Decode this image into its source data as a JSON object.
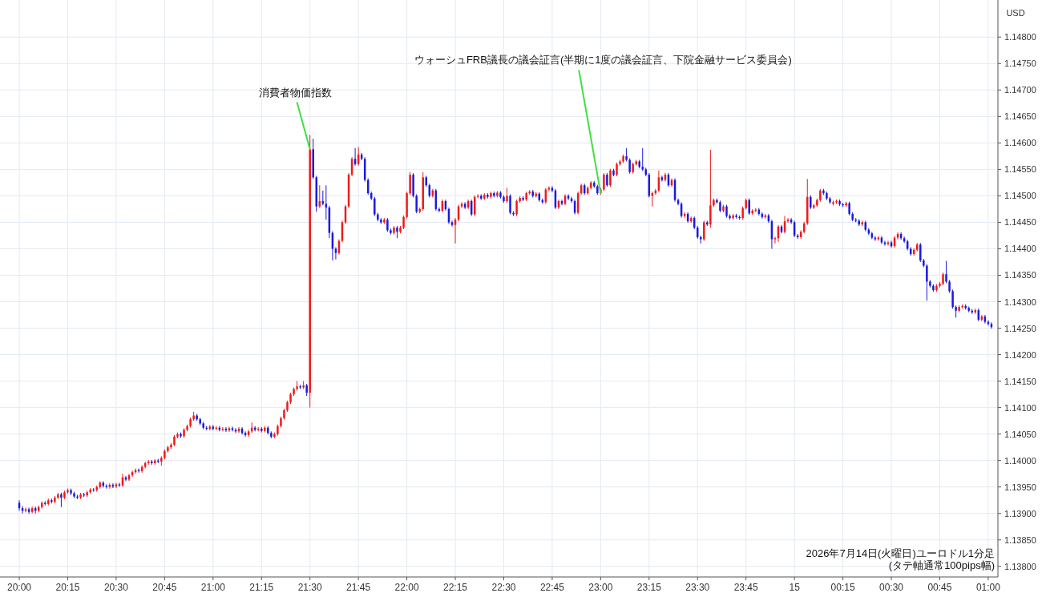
{
  "chart_data": {
    "type": "candlestick",
    "ylabel": "USD",
    "annotations": [
      {
        "text": "消費者物価指数",
        "x": "2026-07-14T21:30",
        "y": 1.14588
      },
      {
        "text": "ウォーシュFRB議長の議会証言(半期に1度の議会証言、下院金融サービス委員会)",
        "x": "2026-07-14T23:00",
        "y": 1.14505
      },
      "2026年7月14日(火曜日)ユーロドル1分足",
      "(タテ軸通常100pips幅)"
    ],
    "xlim": [
      "2026-07-14T19:59",
      "2026-07-15T01:03"
    ],
    "ylim": [
      1.1378,
      1.1487
    ],
    "grid": true,
    "xticks": [
      {
        "value": "2026-07-14T20:00",
        "label": "20:00"
      },
      {
        "value": "2026-07-14T20:15",
        "label": "20:15"
      },
      {
        "value": "2026-07-14T20:30",
        "label": "20:30"
      },
      {
        "value": "2026-07-14T20:45",
        "label": "20:45"
      },
      {
        "value": "2026-07-14T21:00",
        "label": "21:00"
      },
      {
        "value": "2026-07-14T21:15",
        "label": "21:15"
      },
      {
        "value": "2026-07-14T21:30",
        "label": "21:30"
      },
      {
        "value": "2026-07-14T21:45",
        "label": "21:45"
      },
      {
        "value": "2026-07-14T22:00",
        "label": "22:00"
      },
      {
        "value": "2026-07-14T22:15",
        "label": "22:15"
      },
      {
        "value": "2026-07-14T22:30",
        "label": "22:30"
      },
      {
        "value": "2026-07-14T22:45",
        "label": "22:45"
      },
      {
        "value": "2026-07-14T23:00",
        "label": "23:00"
      },
      {
        "value": "2026-07-14T23:15",
        "label": "23:15"
      },
      {
        "value": "2026-07-14T23:30",
        "label": "23:30"
      },
      {
        "value": "2026-07-14T23:45",
        "label": "23:45"
      },
      {
        "value": "2026-07-15T00:00",
        "label": "15"
      },
      {
        "value": "2026-07-15T00:15",
        "label": "00:15"
      },
      {
        "value": "2026-07-15T00:30",
        "label": "00:30"
      },
      {
        "value": "2026-07-15T00:45",
        "label": "00:45"
      },
      {
        "value": "2026-07-15T01:00",
        "label": "01:00"
      }
    ],
    "yticks": [
      {
        "value": 1.138,
        "label": "1.13800"
      },
      {
        "value": 1.1385,
        "label": "1.13850"
      },
      {
        "value": 1.139,
        "label": "1.13900"
      },
      {
        "value": 1.1395,
        "label": "1.13950"
      },
      {
        "value": 1.14,
        "label": "1.14000"
      },
      {
        "value": 1.1405,
        "label": "1.14050"
      },
      {
        "value": 1.141,
        "label": "1.14100"
      },
      {
        "value": 1.1415,
        "label": "1.14150"
      },
      {
        "value": 1.142,
        "label": "1.14200"
      },
      {
        "value": 1.1425,
        "label": "1.14250"
      },
      {
        "value": 1.143,
        "label": "1.14300"
      },
      {
        "value": 1.1435,
        "label": "1.14350"
      },
      {
        "value": 1.144,
        "label": "1.14400"
      },
      {
        "value": 1.1445,
        "label": "1.14450"
      },
      {
        "value": 1.145,
        "label": "1.14500"
      },
      {
        "value": 1.1455,
        "label": "1.14550"
      },
      {
        "value": 1.146,
        "label": "1.14600"
      },
      {
        "value": 1.1465,
        "label": "1.14650"
      },
      {
        "value": 1.147,
        "label": "1.14700"
      },
      {
        "value": 1.1475,
        "label": "1.14750"
      },
      {
        "value": 1.148,
        "label": "1.14800"
      }
    ],
    "x": [
      "2026-07-14T20:00",
      "2026-07-14T20:01",
      "2026-07-14T20:02",
      "2026-07-14T20:03",
      "2026-07-14T20:04",
      "2026-07-14T20:05",
      "2026-07-14T20:06",
      "2026-07-14T20:07",
      "2026-07-14T20:08",
      "2026-07-14T20:09",
      "2026-07-14T20:10",
      "2026-07-14T20:11",
      "2026-07-14T20:12",
      "2026-07-14T20:13",
      "2026-07-14T20:14",
      "2026-07-14T20:15",
      "2026-07-14T20:16",
      "2026-07-14T20:17",
      "2026-07-14T20:18",
      "2026-07-14T20:19",
      "2026-07-14T20:20",
      "2026-07-14T20:21",
      "2026-07-14T20:22",
      "2026-07-14T20:23",
      "2026-07-14T20:24",
      "2026-07-14T20:25",
      "2026-07-14T20:26",
      "2026-07-14T20:27",
      "2026-07-14T20:28",
      "2026-07-14T20:29",
      "2026-07-14T20:30",
      "2026-07-14T20:31",
      "2026-07-14T20:32",
      "2026-07-14T20:33",
      "2026-07-14T20:34",
      "2026-07-14T20:35",
      "2026-07-14T20:36",
      "2026-07-14T20:37",
      "2026-07-14T20:38",
      "2026-07-14T20:39",
      "2026-07-14T20:40",
      "2026-07-14T20:41",
      "2026-07-14T20:42",
      "2026-07-14T20:43",
      "2026-07-14T20:44",
      "2026-07-14T20:45",
      "2026-07-14T20:46",
      "2026-07-14T20:47",
      "2026-07-14T20:48",
      "2026-07-14T20:49",
      "2026-07-14T20:50",
      "2026-07-14T20:51",
      "2026-07-14T20:52",
      "2026-07-14T20:53",
      "2026-07-14T20:54",
      "2026-07-14T20:55",
      "2026-07-14T20:56",
      "2026-07-14T20:57",
      "2026-07-14T20:58",
      "2026-07-14T20:59",
      "2026-07-14T21:00",
      "2026-07-14T21:01",
      "2026-07-14T21:02",
      "2026-07-14T21:03",
      "2026-07-14T21:04",
      "2026-07-14T21:05",
      "2026-07-14T21:06",
      "2026-07-14T21:07",
      "2026-07-14T21:08",
      "2026-07-14T21:09",
      "2026-07-14T21:10",
      "2026-07-14T21:11",
      "2026-07-14T21:12",
      "2026-07-14T21:13",
      "2026-07-14T21:14",
      "2026-07-14T21:15",
      "2026-07-14T21:16",
      "2026-07-14T21:17",
      "2026-07-14T21:18",
      "2026-07-14T21:19",
      "2026-07-14T21:20",
      "2026-07-14T21:21",
      "2026-07-14T21:22",
      "2026-07-14T21:23",
      "2026-07-14T21:24",
      "2026-07-14T21:25",
      "2026-07-14T21:26",
      "2026-07-14T21:27",
      "2026-07-14T21:28",
      "2026-07-14T21:29",
      "2026-07-14T21:30",
      "2026-07-14T21:31",
      "2026-07-14T21:32",
      "2026-07-14T21:33",
      "2026-07-14T21:34",
      "2026-07-14T21:35",
      "2026-07-14T21:36",
      "2026-07-14T21:37",
      "2026-07-14T21:38",
      "2026-07-14T21:39",
      "2026-07-14T21:40",
      "2026-07-14T21:41",
      "2026-07-14T21:42",
      "2026-07-14T21:43",
      "2026-07-14T21:44",
      "2026-07-14T21:45",
      "2026-07-14T21:46",
      "2026-07-14T21:47",
      "2026-07-14T21:48",
      "2026-07-14T21:49",
      "2026-07-14T21:50",
      "2026-07-14T21:51",
      "2026-07-14T21:52",
      "2026-07-14T21:53",
      "2026-07-14T21:54",
      "2026-07-14T21:55",
      "2026-07-14T21:56",
      "2026-07-14T21:57",
      "2026-07-14T21:58",
      "2026-07-14T21:59",
      "2026-07-14T22:00",
      "2026-07-14T22:01",
      "2026-07-14T22:02",
      "2026-07-14T22:03",
      "2026-07-14T22:04",
      "2026-07-14T22:05",
      "2026-07-14T22:06",
      "2026-07-14T22:07",
      "2026-07-14T22:08",
      "2026-07-14T22:09",
      "2026-07-14T22:10",
      "2026-07-14T22:11",
      "2026-07-14T22:12",
      "2026-07-14T22:13",
      "2026-07-14T22:14",
      "2026-07-14T22:15",
      "2026-07-14T22:16",
      "2026-07-14T22:17",
      "2026-07-14T22:18",
      "2026-07-14T22:19",
      "2026-07-14T22:20",
      "2026-07-14T22:21",
      "2026-07-14T22:22",
      "2026-07-14T22:23",
      "2026-07-14T22:24",
      "2026-07-14T22:25",
      "2026-07-14T22:26",
      "2026-07-14T22:27",
      "2026-07-14T22:28",
      "2026-07-14T22:29",
      "2026-07-14T22:30",
      "2026-07-14T22:31",
      "2026-07-14T22:32",
      "2026-07-14T22:33",
      "2026-07-14T22:34",
      "2026-07-14T22:35",
      "2026-07-14T22:36",
      "2026-07-14T22:37",
      "2026-07-14T22:38",
      "2026-07-14T22:39",
      "2026-07-14T22:40",
      "2026-07-14T22:41",
      "2026-07-14T22:42",
      "2026-07-14T22:43",
      "2026-07-14T22:44",
      "2026-07-14T22:45",
      "2026-07-14T22:46",
      "2026-07-14T22:47",
      "2026-07-14T22:48",
      "2026-07-14T22:49",
      "2026-07-14T22:50",
      "2026-07-14T22:51",
      "2026-07-14T22:52",
      "2026-07-14T22:53",
      "2026-07-14T22:54",
      "2026-07-14T22:55",
      "2026-07-14T22:56",
      "2026-07-14T22:57",
      "2026-07-14T22:58",
      "2026-07-14T22:59",
      "2026-07-14T23:00",
      "2026-07-14T23:01",
      "2026-07-14T23:02",
      "2026-07-14T23:03",
      "2026-07-14T23:04",
      "2026-07-14T23:05",
      "2026-07-14T23:06",
      "2026-07-14T23:07",
      "2026-07-14T23:08",
      "2026-07-14T23:09",
      "2026-07-14T23:10",
      "2026-07-14T23:11",
      "2026-07-14T23:12",
      "2026-07-14T23:13",
      "2026-07-14T23:14",
      "2026-07-14T23:15",
      "2026-07-14T23:16",
      "2026-07-14T23:17",
      "2026-07-14T23:18",
      "2026-07-14T23:19",
      "2026-07-14T23:20",
      "2026-07-14T23:21",
      "2026-07-14T23:22",
      "2026-07-14T23:23",
      "2026-07-14T23:24",
      "2026-07-14T23:25",
      "2026-07-14T23:26",
      "2026-07-14T23:27",
      "2026-07-14T23:28",
      "2026-07-14T23:29",
      "2026-07-14T23:30",
      "2026-07-14T23:31",
      "2026-07-14T23:32",
      "2026-07-14T23:33",
      "2026-07-14T23:34",
      "2026-07-14T23:35",
      "2026-07-14T23:36",
      "2026-07-14T23:37",
      "2026-07-14T23:38",
      "2026-07-14T23:39",
      "2026-07-14T23:40",
      "2026-07-14T23:41",
      "2026-07-14T23:42",
      "2026-07-14T23:43",
      "2026-07-14T23:44",
      "2026-07-14T23:45",
      "2026-07-14T23:46",
      "2026-07-14T23:47",
      "2026-07-14T23:48",
      "2026-07-14T23:49",
      "2026-07-14T23:50",
      "2026-07-14T23:51",
      "2026-07-14T23:52",
      "2026-07-14T23:53",
      "2026-07-14T23:54",
      "2026-07-14T23:55",
      "2026-07-14T23:56",
      "2026-07-14T23:57",
      "2026-07-14T23:58",
      "2026-07-14T23:59",
      "2026-07-15T00:00",
      "2026-07-15T00:01",
      "2026-07-15T00:02",
      "2026-07-15T00:03",
      "2026-07-15T00:04",
      "2026-07-15T00:05",
      "2026-07-15T00:06",
      "2026-07-15T00:07",
      "2026-07-15T00:08",
      "2026-07-15T00:09",
      "2026-07-15T00:10",
      "2026-07-15T00:11",
      "2026-07-15T00:12",
      "2026-07-15T00:13",
      "2026-07-15T00:14",
      "2026-07-15T00:15",
      "2026-07-15T00:16",
      "2026-07-15T00:17",
      "2026-07-15T00:18",
      "2026-07-15T00:19",
      "2026-07-15T00:20",
      "2026-07-15T00:21",
      "2026-07-15T00:22",
      "2026-07-15T00:23",
      "2026-07-15T00:24",
      "2026-07-15T00:25",
      "2026-07-15T00:26",
      "2026-07-15T00:27",
      "2026-07-15T00:28",
      "2026-07-15T00:29",
      "2026-07-15T00:30",
      "2026-07-15T00:31",
      "2026-07-15T00:32",
      "2026-07-15T00:33",
      "2026-07-15T00:34",
      "2026-07-15T00:35",
      "2026-07-15T00:36",
      "2026-07-15T00:37",
      "2026-07-15T00:38",
      "2026-07-15T00:39",
      "2026-07-15T00:40",
      "2026-07-15T00:41",
      "2026-07-15T00:42",
      "2026-07-15T00:43",
      "2026-07-15T00:44",
      "2026-07-15T00:45",
      "2026-07-15T00:46",
      "2026-07-15T00:47",
      "2026-07-15T00:48",
      "2026-07-15T00:49",
      "2026-07-15T00:50",
      "2026-07-15T00:51",
      "2026-07-15T00:52",
      "2026-07-15T00:53",
      "2026-07-15T00:54",
      "2026-07-15T00:55",
      "2026-07-15T00:56",
      "2026-07-15T00:57",
      "2026-07-15T00:58",
      "2026-07-15T00:59",
      "2026-07-15T01:00",
      "2026-07-15T01:01"
    ],
    "ohlc": [
      [
        1.1392,
        1.13925,
        1.13905,
        1.1391
      ],
      [
        1.1391,
        1.13914,
        1.139,
        1.13905
      ],
      [
        1.13905,
        1.13911,
        1.13902,
        1.13908
      ],
      [
        1.13908,
        1.13911,
        1.13899,
        1.13903
      ],
      [
        1.13903,
        1.13913,
        1.139,
        1.1391
      ],
      [
        1.1391,
        1.13913,
        1.139,
        1.13905
      ],
      [
        1.13905,
        1.13915,
        1.13902,
        1.13912
      ],
      [
        1.13912,
        1.13923,
        1.13909,
        1.1392
      ],
      [
        1.1392,
        1.13923,
        1.13915,
        1.13918
      ],
      [
        1.13918,
        1.13928,
        1.13915,
        1.13925
      ],
      [
        1.13925,
        1.13928,
        1.13919,
        1.13922
      ],
      [
        1.13922,
        1.13933,
        1.13919,
        1.1393
      ],
      [
        1.1393,
        1.13939,
        1.13927,
        1.13936
      ],
      [
        1.13936,
        1.13939,
        1.13912,
        1.1393
      ],
      [
        1.1393,
        1.13943,
        1.13927,
        1.1394
      ],
      [
        1.1394,
        1.13947,
        1.13937,
        1.13944
      ],
      [
        1.13944,
        1.13947,
        1.13935,
        1.13938
      ],
      [
        1.13938,
        1.13941,
        1.13929,
        1.13932
      ],
      [
        1.13932,
        1.13935,
        1.13927,
        1.1393
      ],
      [
        1.1393,
        1.13939,
        1.13927,
        1.13936
      ],
      [
        1.13936,
        1.13939,
        1.13931,
        1.13934
      ],
      [
        1.13934,
        1.13943,
        1.13931,
        1.1394
      ],
      [
        1.1394,
        1.13948,
        1.13937,
        1.13945
      ],
      [
        1.13945,
        1.13948,
        1.13941,
        1.13944
      ],
      [
        1.13944,
        1.13953,
        1.13941,
        1.1395
      ],
      [
        1.1395,
        1.13961,
        1.13947,
        1.13958
      ],
      [
        1.13958,
        1.13961,
        1.13949,
        1.13952
      ],
      [
        1.13952,
        1.13955,
        1.13947,
        1.1395
      ],
      [
        1.1395,
        1.13957,
        1.13947,
        1.13954
      ],
      [
        1.13954,
        1.13957,
        1.13948,
        1.13951
      ],
      [
        1.13951,
        1.13958,
        1.13948,
        1.13955
      ],
      [
        1.13955,
        1.13958,
        1.1395,
        1.13953
      ],
      [
        1.13953,
        1.13975,
        1.1395,
        1.13968
      ],
      [
        1.13968,
        1.13971,
        1.13961,
        1.13964
      ],
      [
        1.13964,
        1.13975,
        1.13961,
        1.13972
      ],
      [
        1.13972,
        1.13981,
        1.13969,
        1.13978
      ],
      [
        1.13978,
        1.13985,
        1.13975,
        1.13982
      ],
      [
        1.13982,
        1.13985,
        1.13977,
        1.1398
      ],
      [
        1.1398,
        1.13991,
        1.13977,
        1.13988
      ],
      [
        1.13988,
        1.13998,
        1.13985,
        1.13995
      ],
      [
        1.13995,
        1.14001,
        1.13992,
        1.13998
      ],
      [
        1.13998,
        1.14001,
        1.13992,
        1.13995
      ],
      [
        1.13995,
        1.14003,
        1.13992,
        1.14
      ],
      [
        1.14,
        1.14003,
        1.13995,
        1.13998
      ],
      [
        1.13998,
        1.14008,
        1.1399,
        1.14005
      ],
      [
        1.14005,
        1.14021,
        1.14002,
        1.14018
      ],
      [
        1.14018,
        1.14028,
        1.14015,
        1.14025
      ],
      [
        1.14025,
        1.14033,
        1.14022,
        1.1403
      ],
      [
        1.1403,
        1.14048,
        1.14027,
        1.14045
      ],
      [
        1.14045,
        1.14053,
        1.14042,
        1.1405
      ],
      [
        1.1405,
        1.14053,
        1.14043,
        1.14046
      ],
      [
        1.14046,
        1.14061,
        1.14043,
        1.14058
      ],
      [
        1.14058,
        1.14068,
        1.14055,
        1.14065
      ],
      [
        1.14065,
        1.14081,
        1.14062,
        1.14078
      ],
      [
        1.14078,
        1.14092,
        1.14075,
        1.14085
      ],
      [
        1.14085,
        1.14088,
        1.14075,
        1.14078
      ],
      [
        1.14078,
        1.14081,
        1.14067,
        1.1407
      ],
      [
        1.1407,
        1.14073,
        1.14059,
        1.14062
      ],
      [
        1.14062,
        1.14065,
        1.14057,
        1.1406
      ],
      [
        1.1406,
        1.14067,
        1.14057,
        1.14064
      ],
      [
        1.14064,
        1.14067,
        1.14057,
        1.1406
      ],
      [
        1.1406,
        1.14065,
        1.14057,
        1.14062
      ],
      [
        1.14062,
        1.14065,
        1.14055,
        1.14058
      ],
      [
        1.14058,
        1.14063,
        1.14055,
        1.1406
      ],
      [
        1.1406,
        1.14063,
        1.14054,
        1.14057
      ],
      [
        1.14057,
        1.14064,
        1.14054,
        1.14061
      ],
      [
        1.14061,
        1.14064,
        1.14055,
        1.14058
      ],
      [
        1.14058,
        1.14061,
        1.14052,
        1.14055
      ],
      [
        1.14055,
        1.14063,
        1.14052,
        1.1406
      ],
      [
        1.1406,
        1.14063,
        1.14049,
        1.14052
      ],
      [
        1.14052,
        1.14055,
        1.14045,
        1.14048
      ],
      [
        1.14048,
        1.14058,
        1.14045,
        1.14055
      ],
      [
        1.14055,
        1.14072,
        1.14052,
        1.14062
      ],
      [
        1.14062,
        1.14065,
        1.14055,
        1.14058
      ],
      [
        1.14058,
        1.14063,
        1.14055,
        1.1406
      ],
      [
        1.1406,
        1.14063,
        1.14053,
        1.14056
      ],
      [
        1.14056,
        1.14065,
        1.14053,
        1.14062
      ],
      [
        1.14062,
        1.14065,
        1.14049,
        1.14052
      ],
      [
        1.14052,
        1.14055,
        1.14042,
        1.14045
      ],
      [
        1.14045,
        1.14053,
        1.14042,
        1.1405
      ],
      [
        1.1405,
        1.14068,
        1.14047,
        1.14065
      ],
      [
        1.14065,
        1.14083,
        1.14062,
        1.1408
      ],
      [
        1.1408,
        1.14098,
        1.14077,
        1.14095
      ],
      [
        1.14095,
        1.14113,
        1.14092,
        1.1411
      ],
      [
        1.1411,
        1.14128,
        1.14107,
        1.14125
      ],
      [
        1.14125,
        1.14138,
        1.14122,
        1.14135
      ],
      [
        1.14135,
        1.1415,
        1.14132,
        1.1414
      ],
      [
        1.1414,
        1.14143,
        1.14135,
        1.14138
      ],
      [
        1.14138,
        1.1415,
        1.14135,
        1.14142
      ],
      [
        1.14142,
        1.14145,
        1.14122,
        1.14128
      ],
      [
        1.14128,
        1.14615,
        1.141,
        1.14588
      ],
      [
        1.14588,
        1.14608,
        1.14532,
        1.14535
      ],
      [
        1.14535,
        1.14538,
        1.1447,
        1.1448
      ],
      [
        1.1448,
        1.1452,
        1.14477,
        1.1449
      ],
      [
        1.1449,
        1.1451,
        1.14482,
        1.14485
      ],
      [
        1.14485,
        1.1452,
        1.14455,
        1.14478
      ],
      [
        1.14478,
        1.14481,
        1.1442,
        1.1443
      ],
      [
        1.1443,
        1.14433,
        1.14378,
        1.144
      ],
      [
        1.144,
        1.14403,
        1.1438,
        1.14392
      ],
      [
        1.14392,
        1.14418,
        1.14389,
        1.14415
      ],
      [
        1.14415,
        1.14453,
        1.14412,
        1.1445
      ],
      [
        1.1445,
        1.14483,
        1.14447,
        1.1448
      ],
      [
        1.1448,
        1.14543,
        1.14477,
        1.1454
      ],
      [
        1.1454,
        1.14573,
        1.14537,
        1.1457
      ],
      [
        1.1457,
        1.1459,
        1.14557,
        1.1456
      ],
      [
        1.1456,
        1.14592,
        1.14557,
        1.14578
      ],
      [
        1.14578,
        1.14581,
        1.14567,
        1.1457
      ],
      [
        1.1457,
        1.14573,
        1.14527,
        1.1453
      ],
      [
        1.1453,
        1.14533,
        1.14502,
        1.14505
      ],
      [
        1.14505,
        1.14508,
        1.14492,
        1.14495
      ],
      [
        1.14495,
        1.14498,
        1.14462,
        1.14465
      ],
      [
        1.14465,
        1.14468,
        1.14452,
        1.14455
      ],
      [
        1.14455,
        1.14458,
        1.14447,
        1.1445
      ],
      [
        1.1445,
        1.14458,
        1.14447,
        1.14455
      ],
      [
        1.14455,
        1.14458,
        1.14432,
        1.14435
      ],
      [
        1.14435,
        1.14438,
        1.14427,
        1.1443
      ],
      [
        1.1443,
        1.14443,
        1.14427,
        1.1444
      ],
      [
        1.1444,
        1.14443,
        1.1442,
        1.14432
      ],
      [
        1.14432,
        1.14443,
        1.14429,
        1.1444
      ],
      [
        1.1444,
        1.14463,
        1.14437,
        1.1446
      ],
      [
        1.1446,
        1.14508,
        1.14457,
        1.14505
      ],
      [
        1.14505,
        1.14545,
        1.14502,
        1.1454
      ],
      [
        1.1454,
        1.14543,
        1.14497,
        1.145
      ],
      [
        1.145,
        1.14503,
        1.14467,
        1.1447
      ],
      [
        1.1447,
        1.14478,
        1.14467,
        1.14475
      ],
      [
        1.14475,
        1.14545,
        1.14472,
        1.14535
      ],
      [
        1.14535,
        1.14538,
        1.14517,
        1.1452
      ],
      [
        1.1452,
        1.14523,
        1.14497,
        1.145
      ],
      [
        1.145,
        1.14513,
        1.14497,
        1.1451
      ],
      [
        1.1451,
        1.14513,
        1.14472,
        1.14475
      ],
      [
        1.14475,
        1.14478,
        1.14469,
        1.14472
      ],
      [
        1.14472,
        1.14493,
        1.14469,
        1.1449
      ],
      [
        1.1449,
        1.14493,
        1.14472,
        1.14475
      ],
      [
        1.14475,
        1.14478,
        1.14447,
        1.1445
      ],
      [
        1.1445,
        1.14453,
        1.14442,
        1.14445
      ],
      [
        1.14445,
        1.14458,
        1.1441,
        1.14455
      ],
      [
        1.14455,
        1.14483,
        1.14452,
        1.1448
      ],
      [
        1.1448,
        1.14488,
        1.14477,
        1.14485
      ],
      [
        1.14485,
        1.14488,
        1.14475,
        1.14478
      ],
      [
        1.14478,
        1.14493,
        1.14475,
        1.1449
      ],
      [
        1.1449,
        1.14493,
        1.14462,
        1.14465
      ],
      [
        1.14465,
        1.14501,
        1.14462,
        1.14498
      ],
      [
        1.14498,
        1.14503,
        1.14495,
        1.145
      ],
      [
        1.145,
        1.14503,
        1.14492,
        1.14495
      ],
      [
        1.14495,
        1.14505,
        1.14492,
        1.14502
      ],
      [
        1.14502,
        1.14505,
        1.14495,
        1.14498
      ],
      [
        1.14498,
        1.14508,
        1.14495,
        1.14505
      ],
      [
        1.14505,
        1.14508,
        1.14497,
        1.145
      ],
      [
        1.145,
        1.14509,
        1.14497,
        1.14506
      ],
      [
        1.14506,
        1.14509,
        1.14495,
        1.14498
      ],
      [
        1.14498,
        1.14501,
        1.14487,
        1.1449
      ],
      [
        1.1449,
        1.14515,
        1.14487,
        1.145
      ],
      [
        1.145,
        1.14503,
        1.14465,
        1.14468
      ],
      [
        1.14468,
        1.14471,
        1.14462,
        1.14465
      ],
      [
        1.14465,
        1.14493,
        1.14462,
        1.1449
      ],
      [
        1.1449,
        1.14499,
        1.14487,
        1.14496
      ],
      [
        1.14496,
        1.14499,
        1.1449,
        1.14493
      ],
      [
        1.14493,
        1.14508,
        1.1449,
        1.14505
      ],
      [
        1.14505,
        1.14511,
        1.14502,
        1.14508
      ],
      [
        1.14508,
        1.14511,
        1.14497,
        1.145
      ],
      [
        1.145,
        1.14507,
        1.14497,
        1.14504
      ],
      [
        1.14504,
        1.14507,
        1.14489,
        1.14492
      ],
      [
        1.14492,
        1.14495,
        1.14485,
        1.14488
      ],
      [
        1.14488,
        1.14515,
        1.14485,
        1.14512
      ],
      [
        1.14512,
        1.14518,
        1.14509,
        1.14515
      ],
      [
        1.14515,
        1.14518,
        1.14507,
        1.1451
      ],
      [
        1.1451,
        1.14513,
        1.14475,
        1.14478
      ],
      [
        1.14478,
        1.14493,
        1.14475,
        1.1449
      ],
      [
        1.1449,
        1.14493,
        1.14482,
        1.14485
      ],
      [
        1.14485,
        1.14503,
        1.14482,
        1.145
      ],
      [
        1.145,
        1.14503,
        1.14492,
        1.14495
      ],
      [
        1.14495,
        1.14498,
        1.14487,
        1.1449
      ],
      [
        1.1449,
        1.14493,
        1.14465,
        1.14468
      ],
      [
        1.14468,
        1.14508,
        1.14465,
        1.14505
      ],
      [
        1.14505,
        1.14523,
        1.14502,
        1.1452
      ],
      [
        1.1452,
        1.14523,
        1.14502,
        1.14505
      ],
      [
        1.14505,
        1.14518,
        1.14502,
        1.14515
      ],
      [
        1.14515,
        1.14528,
        1.14512,
        1.14525
      ],
      [
        1.14525,
        1.14528,
        1.14515,
        1.14518
      ],
      [
        1.14518,
        1.14521,
        1.14502,
        1.14505
      ],
      [
        1.14505,
        1.14515,
        1.14502,
        1.14512
      ],
      [
        1.14512,
        1.14543,
        1.14509,
        1.1454
      ],
      [
        1.1454,
        1.14543,
        1.14517,
        1.1452
      ],
      [
        1.1452,
        1.14551,
        1.14517,
        1.14548
      ],
      [
        1.14548,
        1.14551,
        1.14537,
        1.1454
      ],
      [
        1.1454,
        1.14563,
        1.14537,
        1.1456
      ],
      [
        1.1456,
        1.14568,
        1.14557,
        1.14565
      ],
      [
        1.14565,
        1.14578,
        1.14562,
        1.14575
      ],
      [
        1.14575,
        1.1459,
        1.14565,
        1.14568
      ],
      [
        1.14568,
        1.14571,
        1.14542,
        1.14545
      ],
      [
        1.14545,
        1.14563,
        1.14542,
        1.1456
      ],
      [
        1.1456,
        1.14568,
        1.14557,
        1.14565
      ],
      [
        1.14565,
        1.14568,
        1.14552,
        1.14555
      ],
      [
        1.14555,
        1.1459,
        1.14547,
        1.1455
      ],
      [
        1.1455,
        1.14553,
        1.14537,
        1.1454
      ],
      [
        1.1454,
        1.14543,
        1.14497,
        1.145
      ],
      [
        1.145,
        1.14508,
        1.1448,
        1.14505
      ],
      [
        1.14505,
        1.14513,
        1.14502,
        1.1451
      ],
      [
        1.1451,
        1.14548,
        1.14507,
        1.14535
      ],
      [
        1.14535,
        1.14538,
        1.14527,
        1.1453
      ],
      [
        1.1453,
        1.14543,
        1.14527,
        1.1454
      ],
      [
        1.1454,
        1.14543,
        1.14517,
        1.1452
      ],
      [
        1.1452,
        1.14533,
        1.14517,
        1.1453
      ],
      [
        1.1453,
        1.14533,
        1.14489,
        1.14492
      ],
      [
        1.14492,
        1.14495,
        1.14482,
        1.14485
      ],
      [
        1.14485,
        1.14488,
        1.14459,
        1.14462
      ],
      [
        1.14462,
        1.14469,
        1.14459,
        1.14466
      ],
      [
        1.14466,
        1.14469,
        1.14449,
        1.14452
      ],
      [
        1.14452,
        1.14461,
        1.14449,
        1.14458
      ],
      [
        1.14458,
        1.14461,
        1.14437,
        1.1444
      ],
      [
        1.1444,
        1.14443,
        1.14419,
        1.14422
      ],
      [
        1.14422,
        1.14425,
        1.1441,
        1.14418
      ],
      [
        1.14418,
        1.14453,
        1.14415,
        1.1445
      ],
      [
        1.1445,
        1.14453,
        1.14443,
        1.14446
      ],
      [
        1.14446,
        1.14587,
        1.1444,
        1.14482
      ],
      [
        1.14482,
        1.14495,
        1.14479,
        1.14492
      ],
      [
        1.14492,
        1.14495,
        1.14485,
        1.14488
      ],
      [
        1.14488,
        1.14491,
        1.14469,
        1.14472
      ],
      [
        1.14472,
        1.14483,
        1.14469,
        1.1448
      ],
      [
        1.1448,
        1.14483,
        1.14459,
        1.14462
      ],
      [
        1.14462,
        1.14465,
        1.14455,
        1.14458
      ],
      [
        1.14458,
        1.14466,
        1.14455,
        1.14463
      ],
      [
        1.14463,
        1.14466,
        1.14457,
        1.1446
      ],
      [
        1.1446,
        1.14463,
        1.14455,
        1.14458
      ],
      [
        1.14458,
        1.1448,
        1.14455,
        1.14477
      ],
      [
        1.14477,
        1.14495,
        1.14474,
        1.14492
      ],
      [
        1.14492,
        1.14495,
        1.14464,
        1.14467
      ],
      [
        1.14467,
        1.14475,
        1.14464,
        1.14472
      ],
      [
        1.14472,
        1.14477,
        1.14469,
        1.14474
      ],
      [
        1.14474,
        1.14477,
        1.14463,
        1.14466
      ],
      [
        1.14466,
        1.14469,
        1.14457,
        1.1446
      ],
      [
        1.1446,
        1.14466,
        1.14457,
        1.14463
      ],
      [
        1.14463,
        1.14466,
        1.14449,
        1.14452
      ],
      [
        1.14452,
        1.14455,
        1.144,
        1.14418
      ],
      [
        1.14418,
        1.14423,
        1.1441,
        1.1442
      ],
      [
        1.1442,
        1.14445,
        1.14413,
        1.14442
      ],
      [
        1.14442,
        1.14445,
        1.14429,
        1.14432
      ],
      [
        1.14432,
        1.14462,
        1.14429,
        1.14452
      ],
      [
        1.14452,
        1.14458,
        1.14449,
        1.14455
      ],
      [
        1.14455,
        1.14458,
        1.14447,
        1.1445
      ],
      [
        1.1445,
        1.14453,
        1.14422,
        1.14425
      ],
      [
        1.14425,
        1.14428,
        1.14419,
        1.14422
      ],
      [
        1.14422,
        1.14435,
        1.14419,
        1.14432
      ],
      [
        1.14432,
        1.14451,
        1.14429,
        1.14448
      ],
      [
        1.14448,
        1.14532,
        1.14445,
        1.14498
      ],
      [
        1.14498,
        1.14501,
        1.14475,
        1.14478
      ],
      [
        1.14478,
        1.14485,
        1.14475,
        1.14482
      ],
      [
        1.14482,
        1.14495,
        1.14479,
        1.14492
      ],
      [
        1.14492,
        1.14513,
        1.14489,
        1.1451
      ],
      [
        1.1451,
        1.14513,
        1.14502,
        1.14505
      ],
      [
        1.14505,
        1.14508,
        1.14492,
        1.14495
      ],
      [
        1.14495,
        1.14498,
        1.14485,
        1.14488
      ],
      [
        1.14485,
        1.14491,
        1.14482,
        1.14488
      ],
      [
        1.14488,
        1.14493,
        1.14485,
        1.1449
      ],
      [
        1.1449,
        1.14493,
        1.14481,
        1.14484
      ],
      [
        1.14484,
        1.14487,
        1.14479,
        1.14482
      ],
      [
        1.14482,
        1.14489,
        1.14479,
        1.14486
      ],
      [
        1.14486,
        1.14489,
        1.14463,
        1.14466
      ],
      [
        1.14466,
        1.14469,
        1.14452,
        1.14455
      ],
      [
        1.14455,
        1.14458,
        1.1445,
        1.14453
      ],
      [
        1.14453,
        1.14456,
        1.14443,
        1.14446
      ],
      [
        1.14446,
        1.14453,
        1.14443,
        1.1445
      ],
      [
        1.1445,
        1.14453,
        1.14433,
        1.14436
      ],
      [
        1.14436,
        1.14439,
        1.14426,
        1.14429
      ],
      [
        1.14429,
        1.14432,
        1.14418,
        1.14421
      ],
      [
        1.14421,
        1.14424,
        1.14415,
        1.14418
      ],
      [
        1.14418,
        1.14424,
        1.14415,
        1.14421
      ],
      [
        1.14421,
        1.14424,
        1.14409,
        1.14412
      ],
      [
        1.14412,
        1.14415,
        1.14406,
        1.14409
      ],
      [
        1.14409,
        1.14415,
        1.14406,
        1.14412
      ],
      [
        1.14412,
        1.14415,
        1.14402,
        1.14405
      ],
      [
        1.14405,
        1.14424,
        1.14402,
        1.14421
      ],
      [
        1.14421,
        1.14431,
        1.14418,
        1.14428
      ],
      [
        1.14428,
        1.14431,
        1.14417,
        1.1442
      ],
      [
        1.1442,
        1.14423,
        1.14411,
        1.14414
      ],
      [
        1.14414,
        1.14417,
        1.14397,
        1.144
      ],
      [
        1.144,
        1.14403,
        1.14387,
        1.1439
      ],
      [
        1.1439,
        1.14401,
        1.14387,
        1.14398
      ],
      [
        1.14398,
        1.14411,
        1.14395,
        1.14408
      ],
      [
        1.14408,
        1.14411,
        1.14375,
        1.14378
      ],
      [
        1.14378,
        1.14381,
        1.14365,
        1.14368
      ],
      [
        1.14368,
        1.14371,
        1.14302,
        1.14338
      ],
      [
        1.14338,
        1.14341,
        1.14327,
        1.1433
      ],
      [
        1.1433,
        1.14333,
        1.14319,
        1.14322
      ],
      [
        1.14322,
        1.14333,
        1.14319,
        1.1433
      ],
      [
        1.1433,
        1.14337,
        1.14327,
        1.14334
      ],
      [
        1.14334,
        1.14355,
        1.14331,
        1.14352
      ],
      [
        1.14352,
        1.14377,
        1.14335,
        1.14338
      ],
      [
        1.14338,
        1.14341,
        1.14317,
        1.1432
      ],
      [
        1.1432,
        1.14323,
        1.14287,
        1.1429
      ],
      [
        1.1429,
        1.14293,
        1.1427,
        1.14283
      ],
      [
        1.14283,
        1.14293,
        1.1428,
        1.1429
      ],
      [
        1.1429,
        1.14295,
        1.14287,
        1.14292
      ],
      [
        1.14292,
        1.14295,
        1.14285,
        1.14288
      ],
      [
        1.14288,
        1.14291,
        1.1428,
        1.14283
      ],
      [
        1.14283,
        1.14286,
        1.14277,
        1.1428
      ],
      [
        1.1428,
        1.14287,
        1.14277,
        1.14284
      ],
      [
        1.14284,
        1.14287,
        1.14263,
        1.14266
      ],
      [
        1.14266,
        1.14275,
        1.14263,
        1.14272
      ],
      [
        1.14272,
        1.14275,
        1.14259,
        1.14262
      ],
      [
        1.14262,
        1.14265,
        1.14255,
        1.14258
      ],
      [
        1.14258,
        1.14261,
        1.14249,
        1.14252
      ]
    ]
  }
}
